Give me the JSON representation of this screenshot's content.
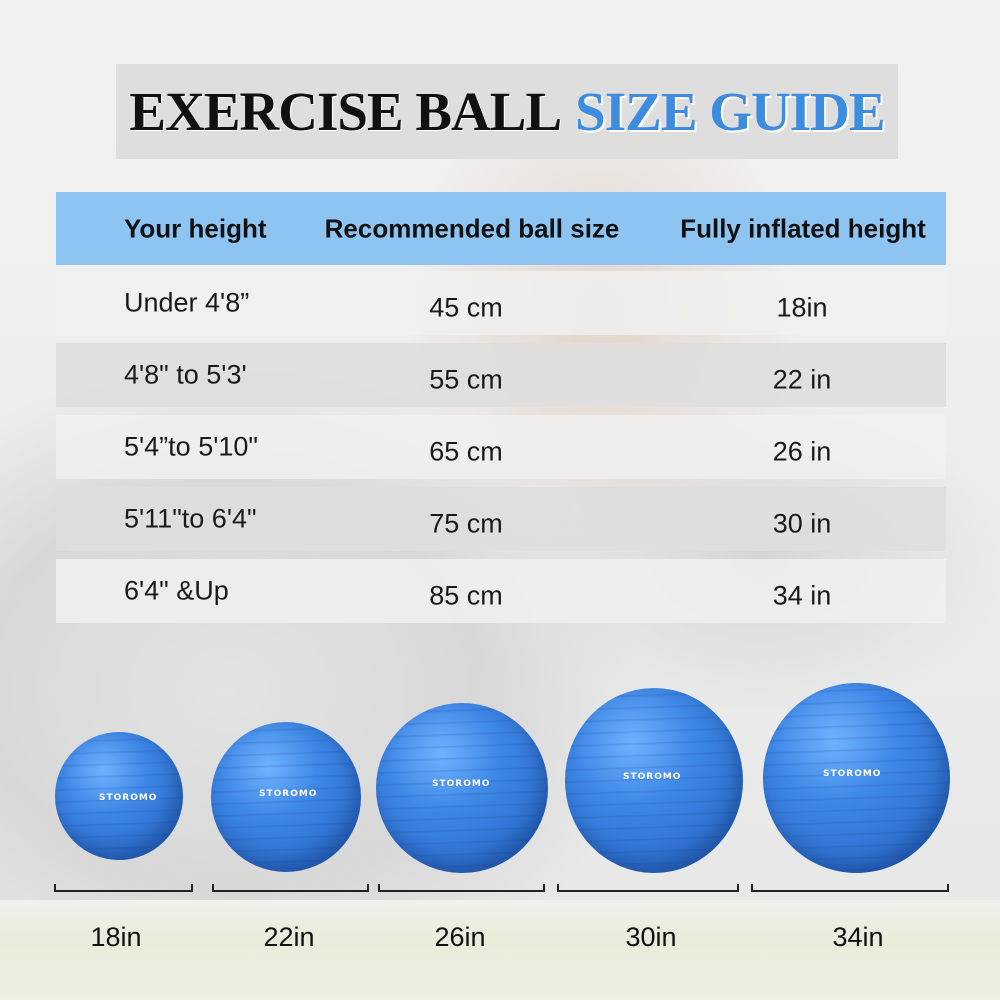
{
  "title": {
    "part1": "EXERCISE BALL",
    "part2": "SIZE GUIDE"
  },
  "table": {
    "headers": [
      "Your height",
      "Recommended ball size",
      "Fully inflated height"
    ],
    "rows": [
      [
        "Under 4'8”",
        "45 cm",
        "18in"
      ],
      [
        "4'8\" to 5'3'",
        "55 cm",
        "22 in"
      ],
      [
        "5'4”to 5'10\"",
        "65 cm",
        "26 in"
      ],
      [
        "5'11\"to 6'4\"",
        "75 cm",
        "30 in"
      ],
      [
        "6'4\" &Up",
        "85 cm",
        "34 in"
      ]
    ]
  },
  "balls": [
    {
      "brand": "STOROMO",
      "label": "18in"
    },
    {
      "brand": "STOROMO",
      "label": "22in"
    },
    {
      "brand": "STOROMO",
      "label": "26in"
    },
    {
      "brand": "STOROMO",
      "label": "30in"
    },
    {
      "brand": "STOROMO",
      "label": "34in"
    }
  ],
  "colors": {
    "header_bg": "#8ec4f2",
    "title_blue": "#3d8ce0",
    "ball_blue": "#3f88e6"
  }
}
